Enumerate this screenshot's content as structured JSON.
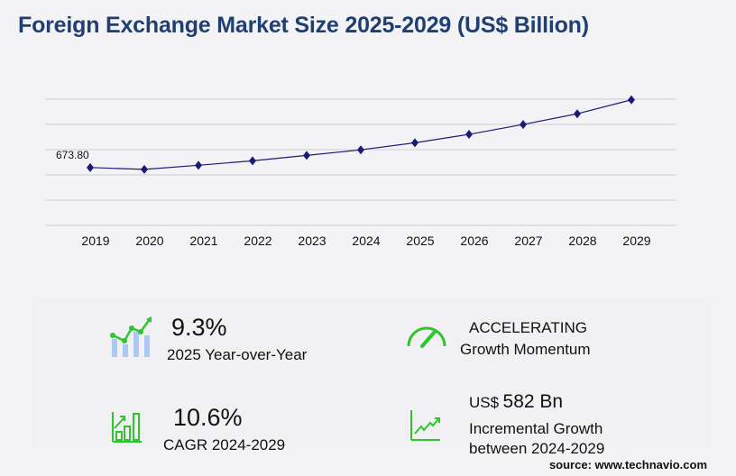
{
  "title": "Foreign Exchange Market Size 2025-2029 (US$ Billion)",
  "chart_data": {
    "type": "line",
    "title": "Foreign Exchange Market Size 2025-2029 (US$ Billion)",
    "categories": [
      "2019",
      "2020",
      "2021",
      "2022",
      "2023",
      "2024",
      "2025",
      "2026",
      "2027",
      "2028",
      "2029"
    ],
    "values": [
      673.8,
      652,
      700,
      752,
      815,
      880,
      962,
      1060,
      1175,
      1300,
      1462
    ],
    "data_labels": [
      "673.80"
    ],
    "ylim": [
      0,
      1470
    ],
    "grid": true,
    "line_color": "#1a1a7a",
    "marker": "diamond"
  },
  "stats": [
    {
      "value": "9.3%",
      "label": "2025 Year-over-Year",
      "icon": "bar-line-growth-icon"
    },
    {
      "value": "ACCELERATING",
      "label": "Growth Momentum",
      "icon": "speedometer-icon"
    },
    {
      "value": "10.6%",
      "label": "CAGR 2024-2029",
      "icon": "bar-chart-arrow-icon"
    },
    {
      "value_prefix": "US$",
      "value": "582 Bn",
      "label": "Incremental Growth",
      "label2": "between 2024-2029",
      "icon": "line-chart-up-icon"
    }
  ],
  "accent_color": "#2ec52e",
  "source": "source: www.technavio.com"
}
